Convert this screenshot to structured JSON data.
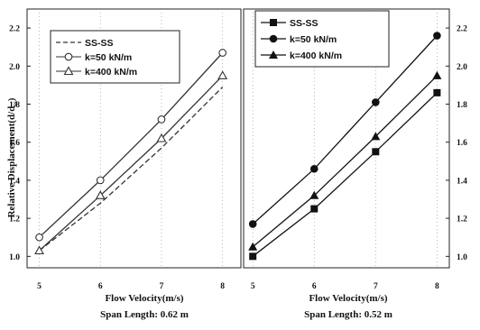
{
  "chart_data": [
    {
      "type": "line",
      "panel": "left",
      "xlabel": "Flow Velocity(m/s)",
      "subtitle": "Span Length: 0.62 m",
      "ylabel": "Relative Displacement(d/d",
      "ylabel_subscript": "ss",
      "ylabel_suffix": ")",
      "x": [
        5,
        6,
        7,
        8
      ],
      "xlim": [
        4.8,
        8.3
      ],
      "ylim": [
        0.94,
        2.3
      ],
      "x_ticks": [
        5,
        6,
        7,
        8
      ],
      "y_ticks": [
        1.0,
        1.2,
        1.4,
        1.6,
        1.8,
        2.0,
        2.2
      ],
      "y_axis_side": "left",
      "legend_placement": "top-left",
      "series": [
        {
          "name": "SS-SS",
          "values": [
            1.03,
            1.28,
            1.57,
            1.89
          ],
          "line": "dashed",
          "marker": "none",
          "color": "#333333"
        },
        {
          "name": "k=50 kN/m",
          "values": [
            1.1,
            1.4,
            1.72,
            2.07
          ],
          "line": "solid",
          "marker": "open-circle",
          "color": "#333333"
        },
        {
          "name": "k=400 kN/m",
          "values": [
            1.03,
            1.32,
            1.62,
            1.95
          ],
          "line": "solid",
          "marker": "open-triangle",
          "color": "#333333"
        }
      ]
    },
    {
      "type": "line",
      "panel": "right",
      "xlabel": "Flow Velocity(m/s)",
      "subtitle": "Span Length: 0.52 m",
      "x": [
        5,
        6,
        7,
        8
      ],
      "xlim": [
        4.85,
        8.2
      ],
      "ylim": [
        0.94,
        2.3
      ],
      "x_ticks": [
        5,
        6,
        7,
        8
      ],
      "y_ticks": [
        1.0,
        1.2,
        1.4,
        1.6,
        1.8,
        2.0,
        2.2
      ],
      "y_axis_side": "right",
      "legend_placement": "top-left",
      "series": [
        {
          "name": "SS-SS",
          "values": [
            1.0,
            1.25,
            1.55,
            1.86
          ],
          "line": "solid",
          "marker": "filled-square",
          "color": "#111111"
        },
        {
          "name": "k=50 kN/m",
          "values": [
            1.17,
            1.46,
            1.81,
            2.16
          ],
          "line": "solid",
          "marker": "filled-circle",
          "color": "#111111"
        },
        {
          "name": "k=400 kN/m",
          "values": [
            1.05,
            1.32,
            1.63,
            1.95
          ],
          "line": "solid",
          "marker": "filled-triangle",
          "color": "#111111"
        }
      ]
    }
  ]
}
